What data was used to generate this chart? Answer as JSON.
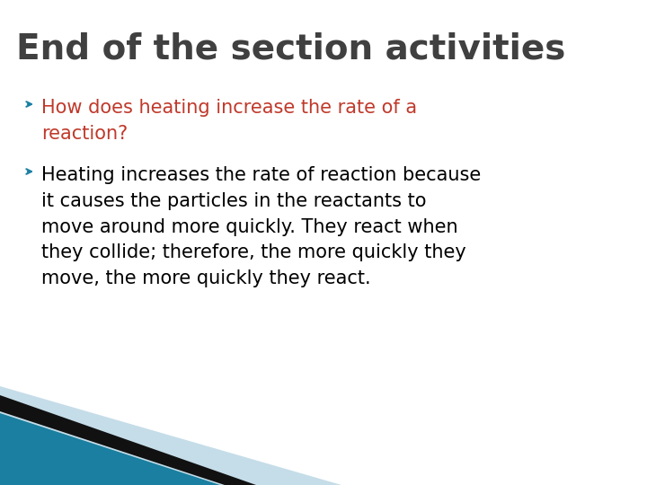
{
  "title": "End of the section activities",
  "title_color": "#404040",
  "title_fontsize": 28,
  "background_color": "#ffffff",
  "bullet_color": "#1b7fa3",
  "bullet1_text_color": "#c0392b",
  "bullet2_text_color": "#000000",
  "bullet1_line1": "How does heating increase the rate of a",
  "bullet1_line2": "reaction?",
  "bullet2_line1": "Heating increases the rate of reaction because",
  "bullet2_line2": "it causes the particles in the reactants to",
  "bullet2_line3": "move around more quickly. They react when",
  "bullet2_line4": "they collide; therefore, the more quickly they",
  "bullet2_line5": "move, the more quickly they react.",
  "body_fontsize": 15,
  "teal_color": "#1a7fa0",
  "black_color": "#111111",
  "lightblue_color": "#c5dde8"
}
